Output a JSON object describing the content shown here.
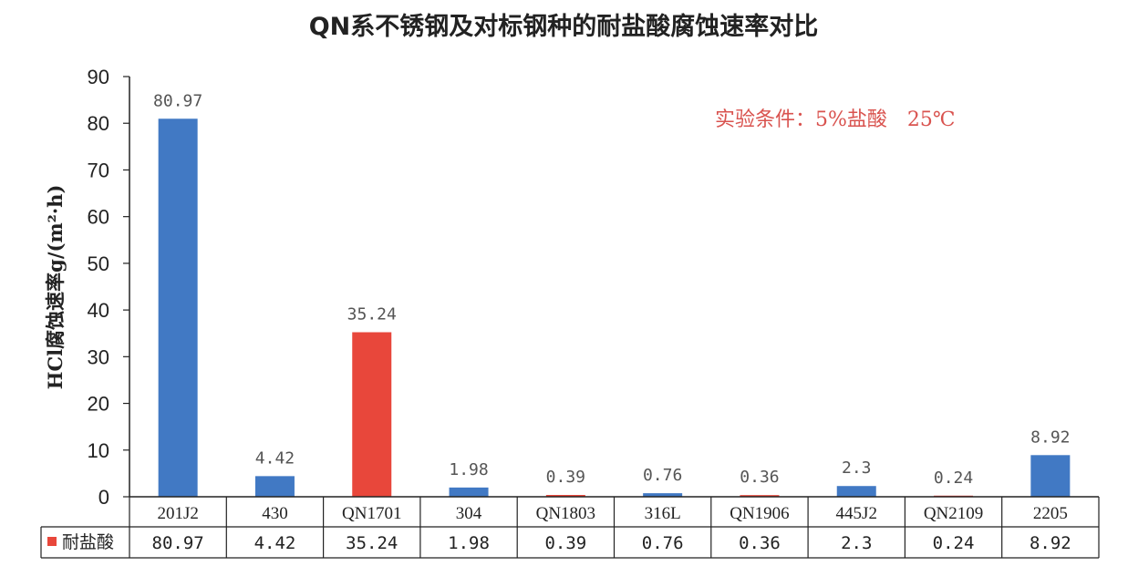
{
  "chart_data": {
    "type": "bar",
    "title": "QN系不锈钢及对标钢种的耐盐酸腐蚀速率对比",
    "annotation": "实验条件：5%盐酸　25℃",
    "ylabel": "HCl腐蚀速率g/(m²·h)",
    "xlabel": "",
    "ylim": [
      0,
      90
    ],
    "yticks": [
      0,
      10,
      20,
      30,
      40,
      50,
      60,
      70,
      80,
      90
    ],
    "grid": false,
    "categories": [
      "201J2",
      "430",
      "QN1701",
      "304",
      "QN1803",
      "316L",
      "QN1906",
      "445J2",
      "QN2109",
      "2205"
    ],
    "series": [
      {
        "name": "耐盐酸",
        "values": [
          80.97,
          4.42,
          35.24,
          1.98,
          0.39,
          0.76,
          0.36,
          2.3,
          0.24,
          8.92
        ],
        "data_labels": [
          "80.97",
          "4.42",
          "35.24",
          "1.98",
          "0.39",
          "0.76",
          "0.36",
          "2.3",
          "0.24",
          "8.92"
        ]
      }
    ],
    "data_table": true,
    "colors": {
      "benchmark": "#4179c4",
      "qn": "#e8473b",
      "legend_swatch": "#e8473b",
      "annotation": "#d9534f"
    }
  }
}
